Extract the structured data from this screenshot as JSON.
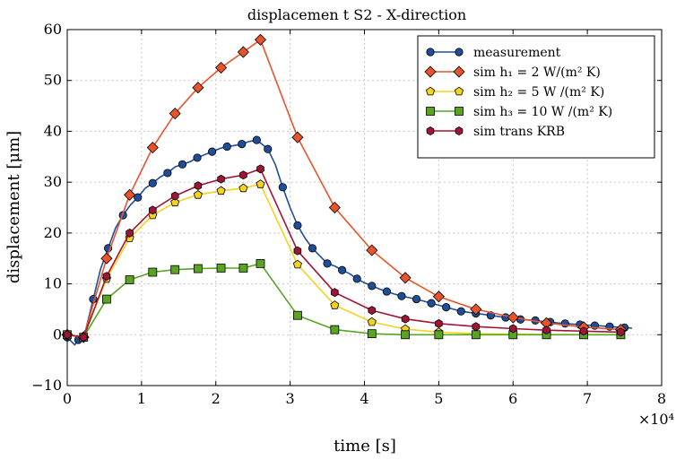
{
  "chart_data": {
    "type": "line",
    "title": "displacemen t S2 - X-direction",
    "xlabel": "time [s]",
    "ylabel": "displacement [μm]",
    "x_multiplier_label": "×10⁴",
    "xlim": [
      0,
      8
    ],
    "ylim": [
      -10,
      60
    ],
    "x_ticks": [
      "0",
      "1",
      "2",
      "3",
      "4",
      "5",
      "6",
      "7",
      "8"
    ],
    "y_ticks": [
      "−10",
      "0",
      "10",
      "20",
      "30",
      "40",
      "50",
      "60"
    ],
    "grid": true,
    "legend_position": "top-right",
    "colors": {
      "measurement": "#1f4e99",
      "sim_h1": "#e8542a",
      "sim_h2": "#f5d31c",
      "sim_h3": "#5aa424",
      "sim_trans": "#a01535"
    },
    "series": [
      {
        "key": "measurement",
        "name": "measurement",
        "marker": "circle",
        "color": "#1f4e99",
        "x": [
          0.0,
          0.1,
          0.15,
          0.25,
          0.35,
          0.45,
          0.55,
          0.65,
          0.75,
          0.85,
          0.95,
          1.05,
          1.15,
          1.25,
          1.35,
          1.45,
          1.55,
          1.65,
          1.75,
          1.85,
          1.95,
          2.05,
          2.15,
          2.25,
          2.35,
          2.45,
          2.55,
          2.62,
          2.7,
          2.8,
          2.9,
          3.0,
          3.1,
          3.2,
          3.3,
          3.4,
          3.5,
          3.6,
          3.7,
          3.8,
          3.9,
          4.0,
          4.1,
          4.2,
          4.3,
          4.4,
          4.5,
          4.6,
          4.7,
          4.8,
          4.9,
          5.0,
          5.1,
          5.2,
          5.3,
          5.4,
          5.5,
          5.6,
          5.7,
          5.8,
          5.9,
          6.0,
          6.1,
          6.2,
          6.3,
          6.4,
          6.5,
          6.6,
          6.7,
          6.8,
          6.9,
          7.0,
          7.1,
          7.2,
          7.3,
          7.4,
          7.5,
          7.6
        ],
        "y": [
          -0.5,
          -2.0,
          -1.0,
          1.0,
          7.0,
          13.0,
          17.0,
          21.0,
          23.5,
          25.5,
          27.0,
          28.8,
          29.8,
          31.0,
          31.8,
          33.0,
          33.5,
          34.0,
          34.8,
          35.4,
          36.0,
          36.6,
          37.0,
          37.2,
          37.5,
          38.0,
          38.3,
          37.5,
          36.5,
          33.5,
          29.0,
          25.0,
          21.5,
          19.0,
          17.0,
          15.5,
          14.0,
          13.5,
          12.7,
          12.0,
          11.0,
          10.2,
          9.6,
          9.0,
          8.5,
          8.0,
          7.6,
          7.3,
          7.0,
          6.6,
          6.2,
          5.8,
          5.4,
          5.0,
          4.6,
          4.4,
          4.2,
          4.0,
          3.8,
          3.6,
          3.4,
          3.2,
          3.0,
          2.9,
          2.8,
          2.6,
          2.5,
          2.3,
          2.2,
          2.1,
          2.0,
          1.9,
          1.8,
          1.7,
          1.6,
          1.5,
          1.4,
          1.3
        ]
      },
      {
        "key": "sim_h1",
        "name": "sim h₁ = 2 W/(m² K)",
        "marker": "diamond",
        "color": "#e8542a",
        "x": [
          0.0,
          0.22,
          0.53,
          0.84,
          1.15,
          1.45,
          1.76,
          2.07,
          2.37,
          2.6,
          3.1,
          3.6,
          4.1,
          4.55,
          5.0,
          5.5,
          6.0,
          6.45,
          6.95,
          7.45
        ],
        "y": [
          0.0,
          -0.5,
          15.0,
          27.5,
          36.8,
          43.5,
          48.6,
          52.5,
          55.6,
          58.0,
          38.8,
          25.0,
          16.6,
          11.2,
          7.5,
          5.0,
          3.4,
          2.3,
          1.5,
          1.0
        ]
      },
      {
        "key": "sim_h2",
        "name": "sim h₂ = 5 W /(m² K)",
        "marker": "pentagon",
        "color": "#f5d31c",
        "x": [
          0.0,
          0.22,
          0.53,
          0.84,
          1.15,
          1.45,
          1.76,
          2.07,
          2.37,
          2.6,
          3.1,
          3.6,
          4.1,
          4.55,
          5.0,
          5.5,
          6.0,
          6.45,
          6.95,
          7.45
        ],
        "y": [
          0.0,
          -0.5,
          11.0,
          19.0,
          23.5,
          26.0,
          27.5,
          28.3,
          28.8,
          29.6,
          13.8,
          5.8,
          2.5,
          1.1,
          0.5,
          0.2,
          0.1,
          0.05,
          0.0,
          0.0
        ]
      },
      {
        "key": "sim_h3",
        "name": "sim h₃ = 10 W /(m² K)",
        "marker": "square",
        "color": "#5aa424",
        "x": [
          0.0,
          0.22,
          0.53,
          0.84,
          1.15,
          1.45,
          1.76,
          2.07,
          2.37,
          2.6,
          3.1,
          3.6,
          4.1,
          4.55,
          5.0,
          5.5,
          6.0,
          6.45,
          6.95,
          7.45
        ],
        "y": [
          0.0,
          -0.5,
          7.0,
          10.8,
          12.3,
          12.8,
          13.0,
          13.1,
          13.1,
          14.0,
          3.8,
          1.0,
          0.2,
          0.0,
          0.0,
          0.0,
          0.0,
          0.0,
          0.0,
          0.0
        ]
      },
      {
        "key": "sim_trans",
        "name": "sim trans KRB",
        "marker": "hexagon",
        "color": "#a01535",
        "x": [
          0.0,
          0.22,
          0.53,
          0.84,
          1.15,
          1.45,
          1.76,
          2.07,
          2.37,
          2.6,
          3.1,
          3.6,
          4.1,
          4.55,
          5.0,
          5.5,
          6.0,
          6.45,
          6.95,
          7.45
        ],
        "y": [
          0.0,
          -0.5,
          11.5,
          20.0,
          24.5,
          27.3,
          29.3,
          30.6,
          31.4,
          32.6,
          16.5,
          8.3,
          4.8,
          3.1,
          2.2,
          1.6,
          1.2,
          0.9,
          0.7,
          0.5
        ]
      }
    ]
  }
}
